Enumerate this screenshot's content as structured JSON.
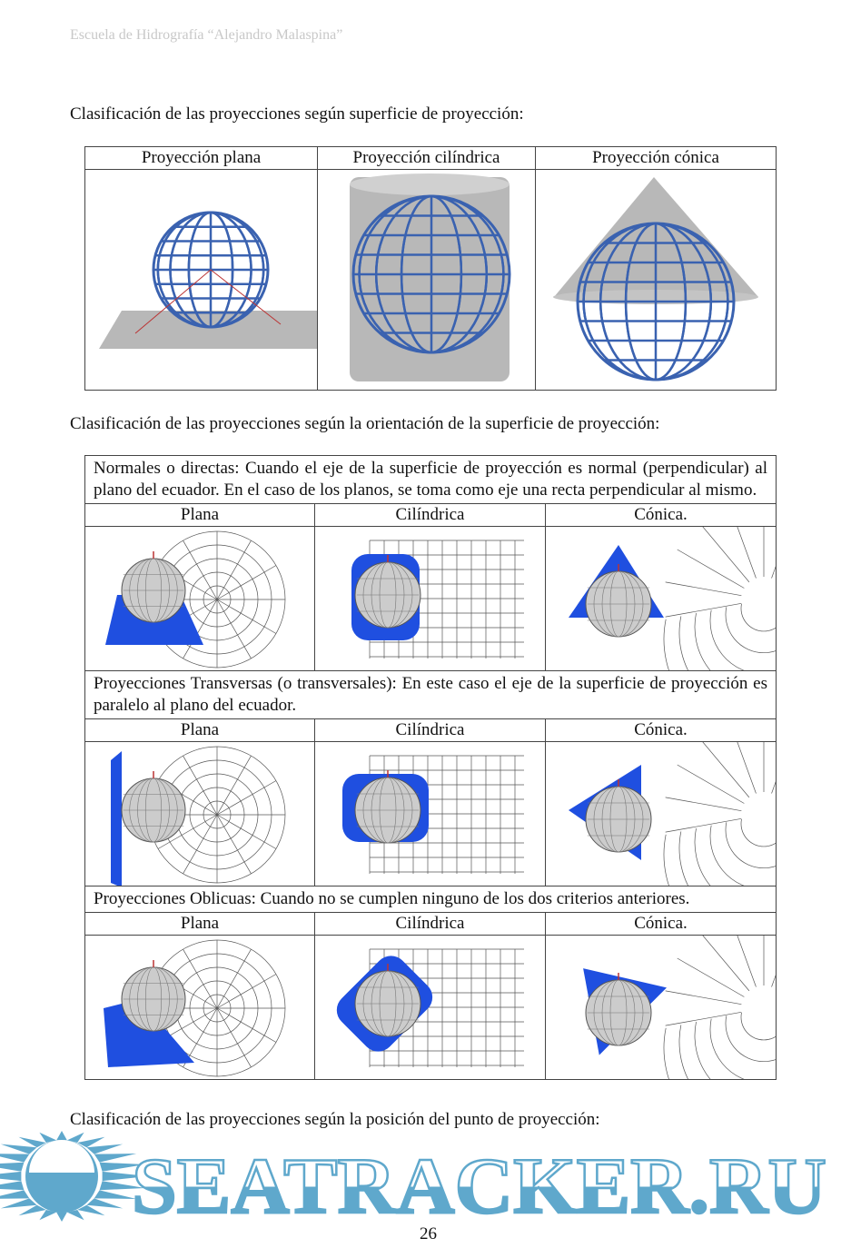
{
  "header": "Escuela de Hidrografía “Alejandro Malaspina”",
  "section1": {
    "title": "Clasificación de las proyecciones según superficie de proyección:",
    "columns": [
      "Proyección plana",
      "Proyección cilíndrica",
      "Proyección cónica"
    ]
  },
  "section2": {
    "title": "Clasificación de las proyecciones según la orientación de la superficie de proyección:",
    "groups": [
      {
        "description": "Normales o directas: Cuando el eje de la superficie de proyección es normal (perpendicular) al plano del ecuador. En el caso de los planos, se toma como eje una recta perpendicular al mismo.",
        "columns": [
          "Plana",
          "Cilíndrica",
          "Cónica."
        ]
      },
      {
        "description": "Proyecciones Transversas (o transversales): En este caso el eje de la superficie de proyección es paralelo al plano del ecuador.",
        "columns": [
          "Plana",
          "Cilíndrica",
          "Cónica."
        ]
      },
      {
        "description": "Proyecciones Oblicuas: Cuando no se cumplen ninguno de los dos criterios anteriores.",
        "columns": [
          "Plana",
          "Cilíndrica",
          "Cónica."
        ]
      }
    ]
  },
  "section3": {
    "title": "Clasificación de las proyecciones según la posición del punto de proyección:"
  },
  "page_number": "26",
  "watermark": "SEATRACKER.RU",
  "colors": {
    "globe_grid": "#3a62b0",
    "surface_blue": "#1f4fe0",
    "surface_gray": "#b8b8b8",
    "watermark": "#5fa8cc"
  }
}
